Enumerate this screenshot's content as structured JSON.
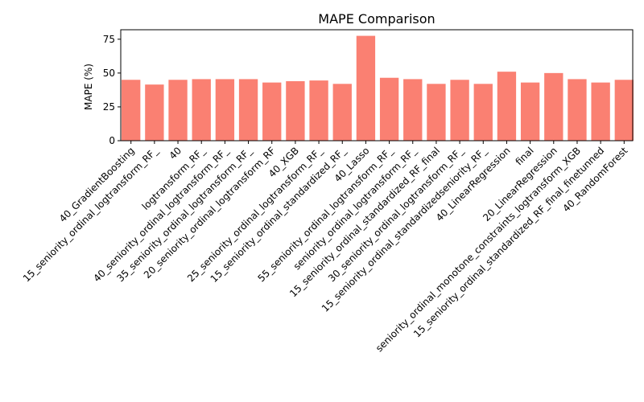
{
  "chart_data": {
    "type": "bar",
    "title": "MAPE Comparison",
    "xlabel": "",
    "ylabel": "MAPE (%)",
    "ylim": [
      0,
      82
    ],
    "yticks": [
      0,
      25,
      50,
      75
    ],
    "bar_color": "#fa8072",
    "grid": false,
    "categories": [
      "40_GradientBoosting",
      "15_seniority_ordinal_logtransform_RF_",
      "40",
      "logtransform_RF_",
      "40_seniority_ordinal_logtransform_RF_",
      "35_seniority_ordinal_logtransform_RF_",
      "20_seniority_ordinal_logtransform_RF",
      "40_XGB",
      "25_seniority_ordinal_logtransform_RF_",
      "15_seniority_ordinal_standardized_RF_",
      "40_Lasso",
      "55_seniority_ordinal_logtransform_RF_",
      "seniority_ordinal_logtransform_RF_",
      "15_seniority_ordinal_standardized_RF_final",
      "30_seniority_ordinal_logtransform_RF_",
      "15_seniority_ordinal_standardizedseniority_RF_",
      "40_LinearRegression",
      "final",
      "20_LinearRegression",
      "seniority_ordinal_monotone_constraints_logtransform_XGB",
      "15_seniority_ordinal_standardized_RF_final_finetunned",
      "40_RandomForest"
    ],
    "values": [
      45,
      41.5,
      45,
      45.5,
      45.5,
      45.5,
      43,
      44,
      44.5,
      42,
      77.5,
      46.5,
      45.5,
      42,
      45,
      42,
      51,
      43,
      50,
      45.5,
      43,
      45
    ]
  }
}
